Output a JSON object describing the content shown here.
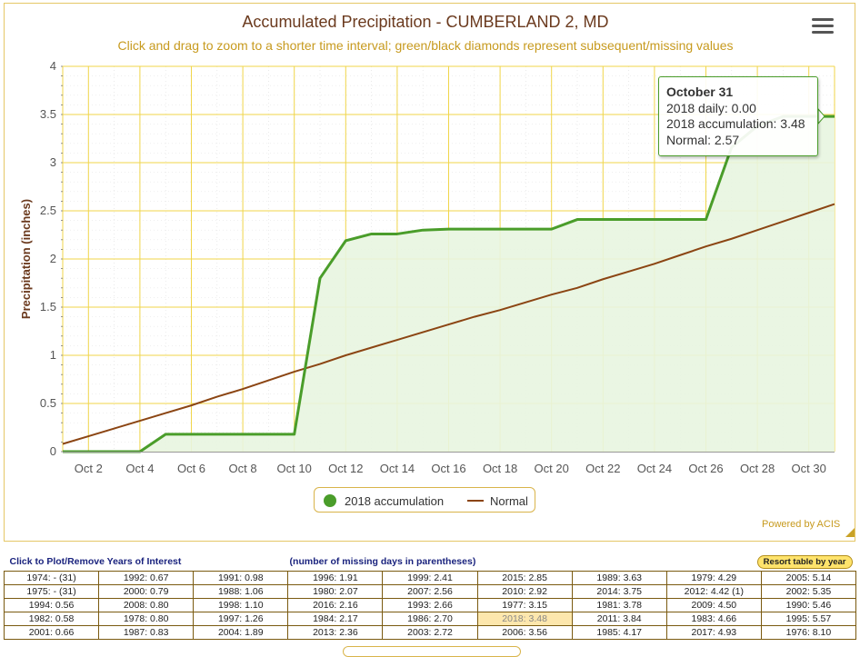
{
  "title": "Accumulated Precipitation - CUMBERLAND 2, MD",
  "subtitle": "Click and drag to zoom to a shorter time interval; green/black diamonds represent subsequent/missing values",
  "credit": "Powered by ACIS",
  "menu_icon": "hamburger-menu-icon",
  "colors": {
    "accum_line": "#4a9d2a",
    "accum_fill": "#e8f5e0",
    "normal_line": "#8b4513",
    "grid": "#f0d64a",
    "title": "#6b3a1e",
    "subtitle": "#c79a1e"
  },
  "tooltip": {
    "date": "October 31",
    "daily": "2018 daily: 0.00",
    "accum": "2018 accumulation: 3.48",
    "normal": "Normal: 2.57"
  },
  "chart_data": {
    "type": "area",
    "ylabel": "Precipitation (inches)",
    "ylim": [
      0,
      4
    ],
    "yticks": [
      "0",
      "0.5",
      "1",
      "1.5",
      "2",
      "2.5",
      "3",
      "3.5",
      "4"
    ],
    "x": [
      1,
      2,
      3,
      4,
      5,
      6,
      7,
      8,
      9,
      10,
      11,
      12,
      13,
      14,
      15,
      16,
      17,
      18,
      19,
      20,
      21,
      22,
      23,
      24,
      25,
      26,
      27,
      28,
      29,
      30,
      31
    ],
    "xlim": [
      1,
      31
    ],
    "xticks": [
      {
        "day": 2,
        "label": "Oct 2"
      },
      {
        "day": 4,
        "label": "Oct 4"
      },
      {
        "day": 6,
        "label": "Oct 6"
      },
      {
        "day": 8,
        "label": "Oct 8"
      },
      {
        "day": 10,
        "label": "Oct 10"
      },
      {
        "day": 12,
        "label": "Oct 12"
      },
      {
        "day": 14,
        "label": "Oct 14"
      },
      {
        "day": 16,
        "label": "Oct 16"
      },
      {
        "day": 18,
        "label": "Oct 18"
      },
      {
        "day": 20,
        "label": "Oct 20"
      },
      {
        "day": 22,
        "label": "Oct 22"
      },
      {
        "day": 24,
        "label": "Oct 24"
      },
      {
        "day": 26,
        "label": "Oct 26"
      },
      {
        "day": 28,
        "label": "Oct 28"
      },
      {
        "day": 30,
        "label": "Oct 30"
      }
    ],
    "series": [
      {
        "name": "2018 accumulation",
        "values": [
          0.0,
          0.0,
          0.0,
          0.0,
          0.18,
          0.18,
          0.18,
          0.18,
          0.18,
          0.18,
          1.8,
          2.19,
          2.26,
          2.26,
          2.3,
          2.31,
          2.31,
          2.31,
          2.31,
          2.31,
          2.41,
          2.41,
          2.41,
          2.41,
          2.41,
          2.41,
          3.16,
          3.38,
          3.48,
          3.48,
          3.48
        ]
      },
      {
        "name": "Normal",
        "values": [
          0.08,
          0.16,
          0.24,
          0.32,
          0.4,
          0.48,
          0.57,
          0.65,
          0.74,
          0.83,
          0.91,
          1.0,
          1.08,
          1.16,
          1.24,
          1.32,
          1.4,
          1.47,
          1.55,
          1.63,
          1.7,
          1.79,
          1.87,
          1.95,
          2.04,
          2.13,
          2.21,
          2.3,
          2.39,
          2.48,
          2.57
        ]
      }
    ],
    "legend": [
      "2018 accumulation",
      "Normal"
    ],
    "legend_position": "bottom-center"
  },
  "table": {
    "header_left": "Click to Plot/Remove Years of Interest",
    "header_mid": "(number of missing days in parentheses)",
    "resort_label": "Resort table by year",
    "selected": "2018: 3.48",
    "rows": [
      [
        "1974: - (31)",
        "1992: 0.67",
        "1991: 0.98",
        "1996: 1.91",
        "1999: 2.41",
        "2015: 2.85",
        "1989: 3.63",
        "1979: 4.29",
        "2005: 5.14"
      ],
      [
        "1975: - (31)",
        "2000: 0.79",
        "1988: 1.06",
        "1980: 2.07",
        "2007: 2.56",
        "2010: 2.92",
        "2014: 3.75",
        "2012: 4.42 (1)",
        "2002: 5.35"
      ],
      [
        "1994: 0.56",
        "2008: 0.80",
        "1998: 1.10",
        "2016: 2.16",
        "1993: 2.66",
        "1977: 3.15",
        "1981: 3.78",
        "2009: 4.50",
        "1990: 5.46"
      ],
      [
        "1982: 0.58",
        "1978: 0.80",
        "1997: 1.26",
        "1984: 2.17",
        "1986: 2.70",
        "2018: 3.48",
        "2011: 3.84",
        "1983: 4.66",
        "1995: 5.57"
      ],
      [
        "2001: 0.66",
        "1987: 0.83",
        "2004: 1.89",
        "2013: 2.36",
        "2003: 2.72",
        "2006: 3.56",
        "1985: 4.17",
        "2017: 4.93",
        "1976: 8.10"
      ]
    ]
  }
}
